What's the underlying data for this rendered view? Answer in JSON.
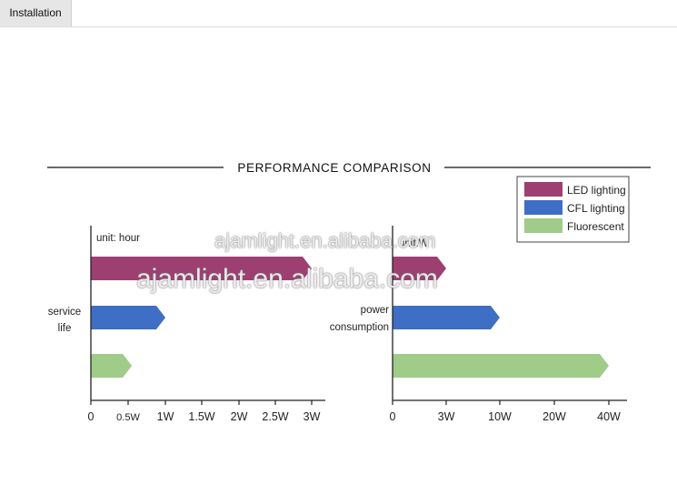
{
  "tab": {
    "label": "Installation"
  },
  "heading": "PERFORMANCE COMPARISON",
  "legend": [
    {
      "label": "LED lighting",
      "color": "#9e3f72"
    },
    {
      "label": "CFL lighting",
      "color": "#3f6fc4"
    },
    {
      "label": "Fluorescent",
      "color": "#9fcc88"
    }
  ],
  "watermark": {
    "line1": "ajamlight.en.alibaba.com",
    "line2": "ajamlight.en.alibaba.com"
  },
  "chart_data": [
    {
      "type": "bar",
      "orientation": "horizontal",
      "unit_label": "unit: hour",
      "category_label": [
        "service",
        "life"
      ],
      "xlim": [
        0,
        3
      ],
      "ticks": [
        0,
        0.5,
        1,
        1.5,
        2,
        2.5,
        3
      ],
      "tick_labels": [
        "0",
        "0.5W",
        "1W",
        "1.5W",
        "2W",
        "2.5W",
        "3W"
      ],
      "series": [
        {
          "name": "LED lighting",
          "value": 3,
          "color": "#9e3f72"
        },
        {
          "name": "CFL lighting",
          "value": 1,
          "color": "#3f6fc4"
        },
        {
          "name": "Fluorescent",
          "value": 0.55,
          "color": "#9fcc88"
        }
      ]
    },
    {
      "type": "bar",
      "orientation": "horizontal",
      "unit_label": "unit:W",
      "category_label": [
        "power",
        "consumption"
      ],
      "xlim": [
        0,
        40
      ],
      "ticks": [
        0,
        3,
        10,
        20,
        40
      ],
      "tick_labels": [
        "0",
        "3W",
        "10W",
        "20W",
        "40W"
      ],
      "tick_scale": "non-linear",
      "series": [
        {
          "name": "LED lighting",
          "value": 3,
          "color": "#9e3f72"
        },
        {
          "name": "CFL lighting",
          "value": 10,
          "color": "#3f6fc4"
        },
        {
          "name": "Fluorescent",
          "value": 40,
          "color": "#9fcc88"
        }
      ]
    }
  ]
}
